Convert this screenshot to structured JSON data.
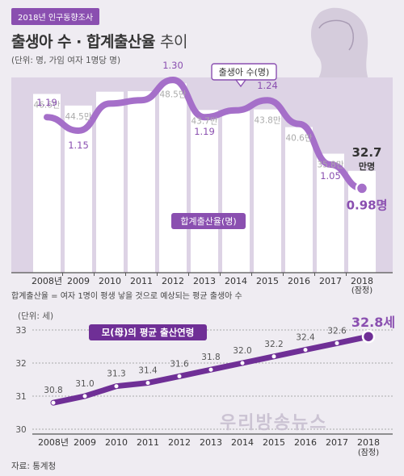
{
  "header": {
    "badge": "2018년 인구동향조사",
    "title_bold": "출생아 수 · 합계출산율",
    "title_light": "추이",
    "unit": "(단위: 명, 가임 여자 1명당 명)"
  },
  "note": "합계출산율 = 여자 1명이 평생 낳을 것으로 예상되는 평균 출생아 수",
  "source": "자료: 통계청",
  "watermark": "우리방송뉴스",
  "colors": {
    "accent": "#8a4fb0",
    "line": "#a56fc9",
    "bar": "#ffffff",
    "background": "#efecf2"
  },
  "chart_data": [
    {
      "type": "bar+line",
      "categories": [
        "2008년",
        "2009",
        "2010",
        "2011",
        "2012",
        "2013",
        "2014",
        "2015",
        "2016",
        "2017",
        "2018"
      ],
      "last_category_note": "(잠정)",
      "series": [
        {
          "name": "출생아 수(명)",
          "kind": "bar",
          "values": [
            46.6,
            44.5,
            47.0,
            47.1,
            48.5,
            43.7,
            43.5,
            43.8,
            40.6,
            35.8,
            32.7
          ],
          "labels": [
            "46.6만",
            "44.5만",
            "",
            "",
            "48.5만",
            "43.7만",
            "",
            "43.8만",
            "40.6만",
            "35.8만",
            "32.7 만명"
          ]
        },
        {
          "name": "합계출산율(명)",
          "kind": "line",
          "values": [
            1.19,
            1.15,
            1.23,
            1.24,
            1.3,
            1.19,
            1.21,
            1.24,
            1.17,
            1.05,
            0.98
          ],
          "labels": [
            "1.19",
            "1.15",
            "",
            "",
            "1.30",
            "1.19",
            "",
            "1.24",
            "",
            "1.05",
            "0.98명"
          ]
        }
      ]
    },
    {
      "type": "line",
      "title": "모(母)의 평균 출산연령",
      "ylabel": "(단위: 세)",
      "ylim": [
        30,
        33
      ],
      "yticks": [
        "30",
        "31",
        "32",
        "33"
      ],
      "categories": [
        "2008년",
        "2009",
        "2010",
        "2011",
        "2012",
        "2013",
        "2014",
        "2015",
        "2016",
        "2017",
        "2018"
      ],
      "last_category_note": "(잠정)",
      "values": [
        30.8,
        31.0,
        31.3,
        31.4,
        31.6,
        31.8,
        32.0,
        32.2,
        32.4,
        32.6,
        32.8
      ],
      "labels": [
        "30.8",
        "31.0",
        "31.3",
        "31.4",
        "31.6",
        "31.8",
        "32.0",
        "32.2",
        "32.4",
        "32.6",
        "32.8세"
      ]
    }
  ]
}
